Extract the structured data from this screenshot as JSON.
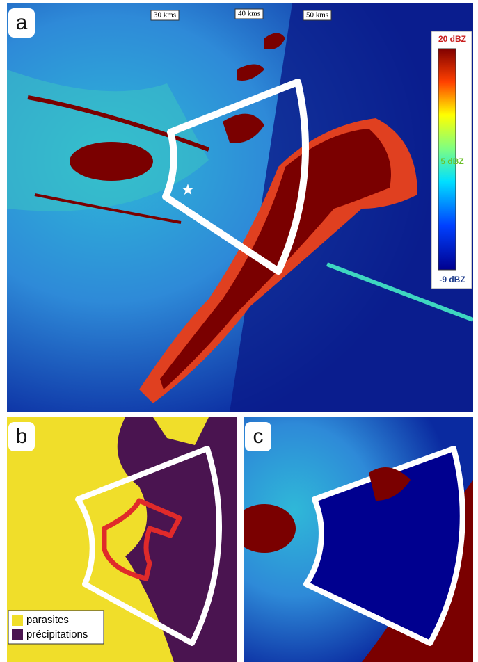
{
  "panels": {
    "a": {
      "label": "a",
      "range_labels": [
        "30 kms",
        "40 kms",
        "50 kms"
      ],
      "colorbar": {
        "top": "20 dBZ",
        "middle": "5 dBZ",
        "bottom": "-9 dBZ"
      }
    },
    "b": {
      "label": "b",
      "legend": [
        "parasites",
        "précipitations"
      ]
    },
    "c": {
      "label": "c"
    }
  }
}
